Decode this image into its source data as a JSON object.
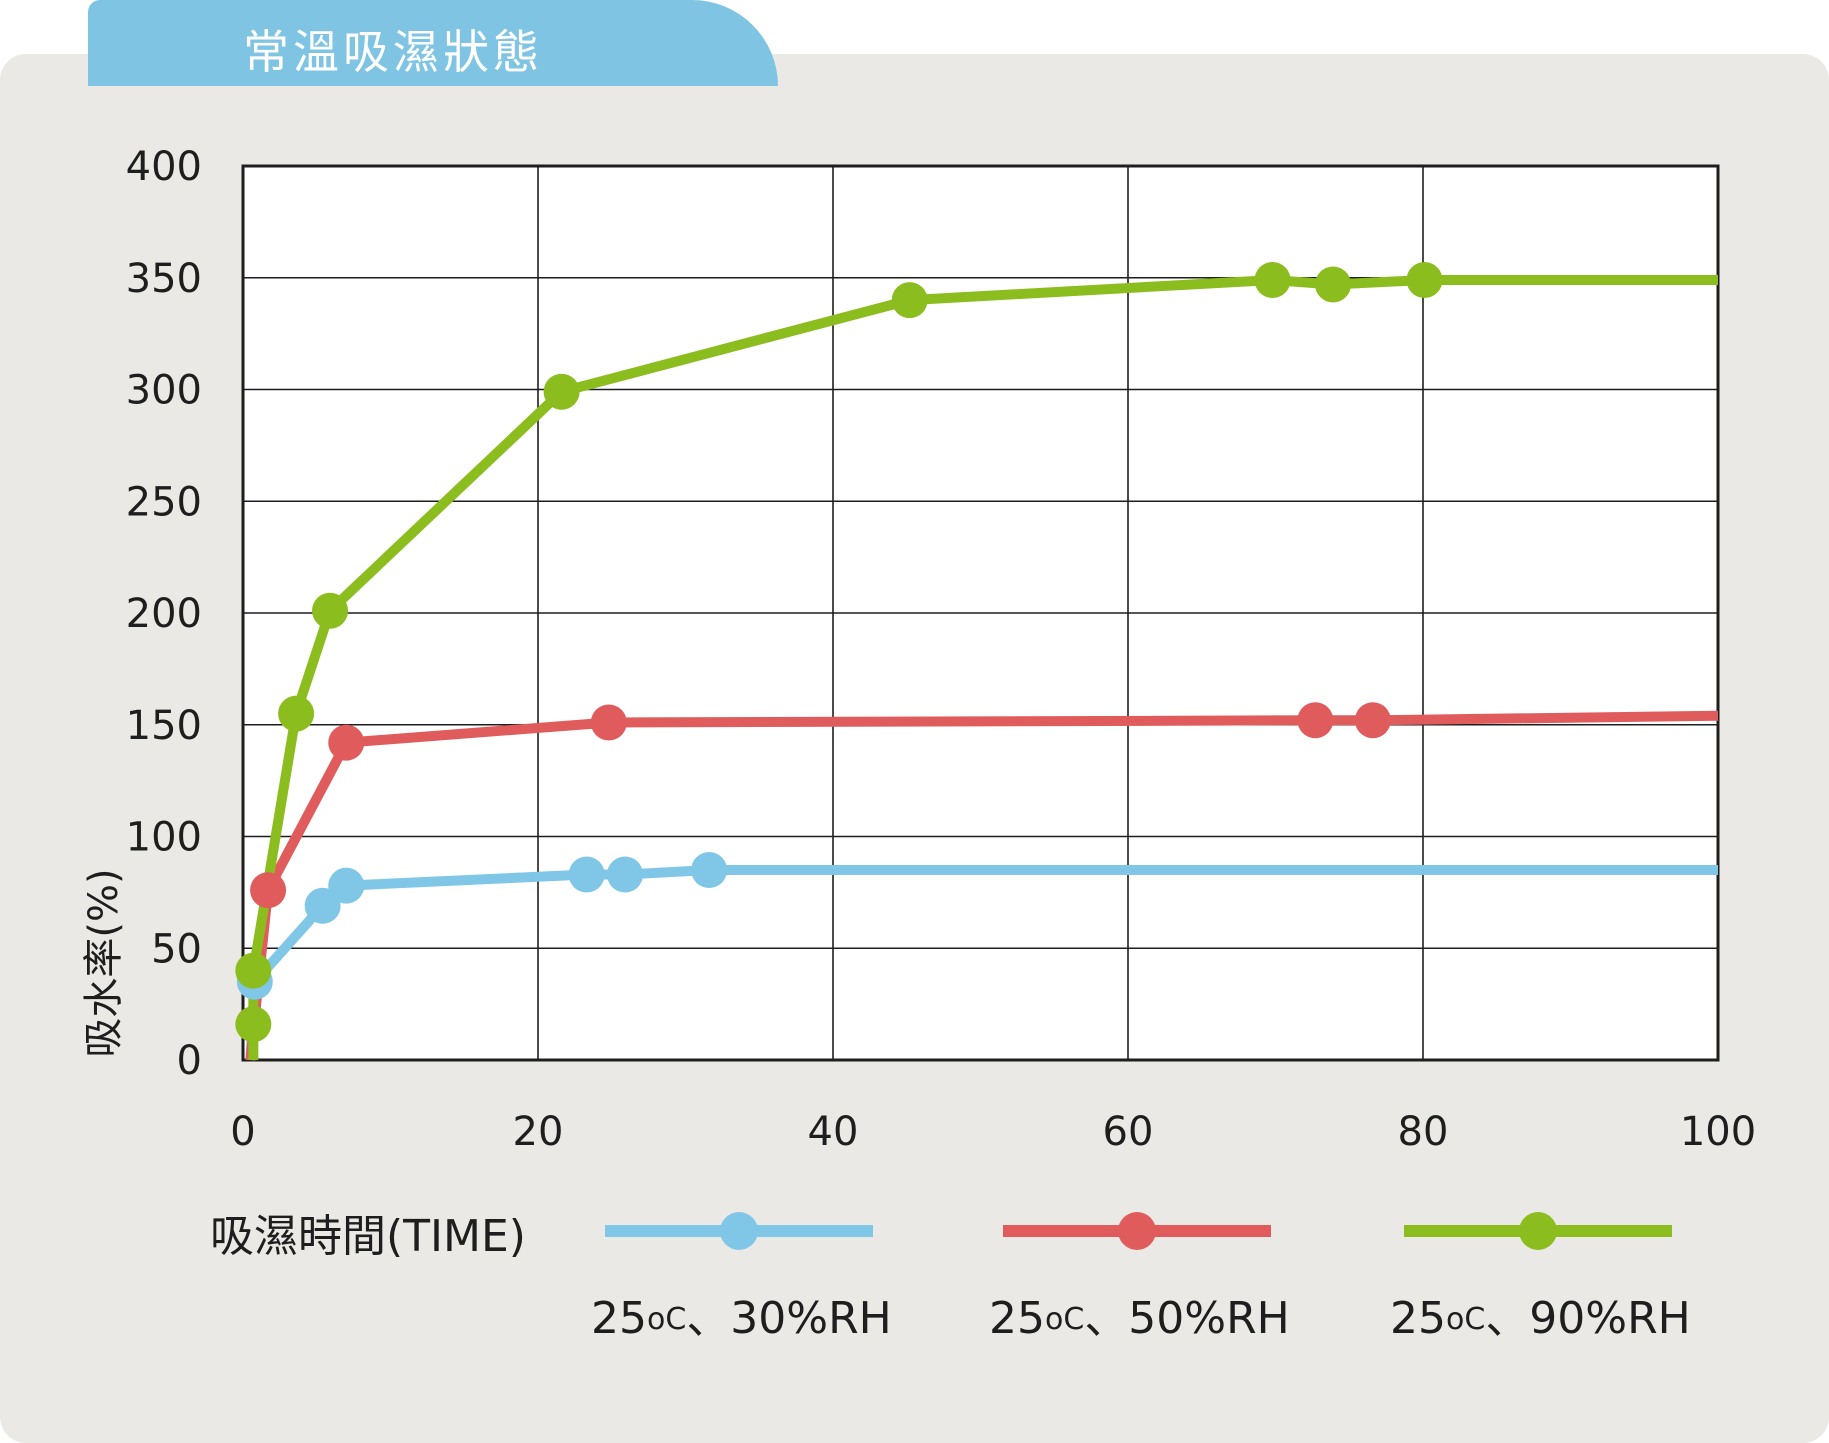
{
  "header": {
    "title": "常溫吸濕狀態"
  },
  "colors": {
    "series_30": "#80c7e7",
    "series_50": "#e05c5c",
    "series_90": "#8cbd1f",
    "tab": "#7fc5e3",
    "panel": "#ebe9e6",
    "plot_bg": "#ffffff",
    "grid": "#1e1e1e"
  },
  "chart_data": {
    "type": "line",
    "title": "",
    "xlabel": "吸濕時間(TIME)",
    "ylabel": "吸水率(%)",
    "xlim": [
      0,
      100
    ],
    "ylim": [
      0,
      400
    ],
    "xticks": [
      "0",
      "20",
      "40",
      "60",
      "80",
      "100"
    ],
    "yticks": [
      "0",
      "50",
      "100",
      "150",
      "200",
      "250",
      "300",
      "350",
      "400"
    ],
    "grid": true,
    "legend_position": "bottom",
    "series": [
      {
        "name": "25°C、30%RH",
        "color": "#80c7e7",
        "points": [
          [
            0.5,
            0
          ],
          [
            0.8,
            35
          ],
          [
            5.4,
            69
          ],
          [
            7,
            78
          ],
          [
            23.3,
            83
          ],
          [
            25.9,
            83
          ],
          [
            31.6,
            85
          ],
          [
            100,
            85
          ]
        ],
        "markers": [
          [
            0.8,
            35
          ],
          [
            5.4,
            69
          ],
          [
            7,
            78
          ],
          [
            23.3,
            83
          ],
          [
            25.9,
            83
          ],
          [
            31.6,
            85
          ]
        ]
      },
      {
        "name": "25°C、50%RH",
        "color": "#e05c5c",
        "points": [
          [
            0.5,
            0
          ],
          [
            1.7,
            76
          ],
          [
            7,
            142
          ],
          [
            24.8,
            151
          ],
          [
            72.7,
            152
          ],
          [
            76.6,
            152
          ],
          [
            100,
            154
          ]
        ],
        "markers": [
          [
            1.7,
            76
          ],
          [
            7,
            142
          ],
          [
            24.8,
            151
          ],
          [
            72.7,
            152
          ],
          [
            76.6,
            152
          ]
        ]
      },
      {
        "name": "25°C、90%RH",
        "color": "#8cbd1f",
        "points": [
          [
            0.7,
            0
          ],
          [
            0.7,
            16
          ],
          [
            0.7,
            40
          ],
          [
            3.6,
            155
          ],
          [
            5.9,
            201
          ],
          [
            21.6,
            299
          ],
          [
            45.2,
            340
          ],
          [
            69.8,
            349
          ],
          [
            73.9,
            347
          ],
          [
            80.1,
            349
          ],
          [
            100,
            349
          ]
        ],
        "markers": [
          [
            0.7,
            16
          ],
          [
            0.7,
            40
          ],
          [
            3.6,
            155
          ],
          [
            5.9,
            201
          ],
          [
            21.6,
            299
          ],
          [
            45.2,
            340
          ],
          [
            69.8,
            349
          ],
          [
            73.9,
            347
          ],
          [
            80.1,
            349
          ]
        ]
      }
    ]
  },
  "legend": {
    "items": [
      {
        "label_prefix": "25",
        "label_unit": "oC",
        "label_suffix": "、30%RH"
      },
      {
        "label_prefix": "25",
        "label_unit": "oC",
        "label_suffix": "、50%RH"
      },
      {
        "label_prefix": "25",
        "label_unit": "oC",
        "label_suffix": "、90%RH"
      }
    ]
  }
}
